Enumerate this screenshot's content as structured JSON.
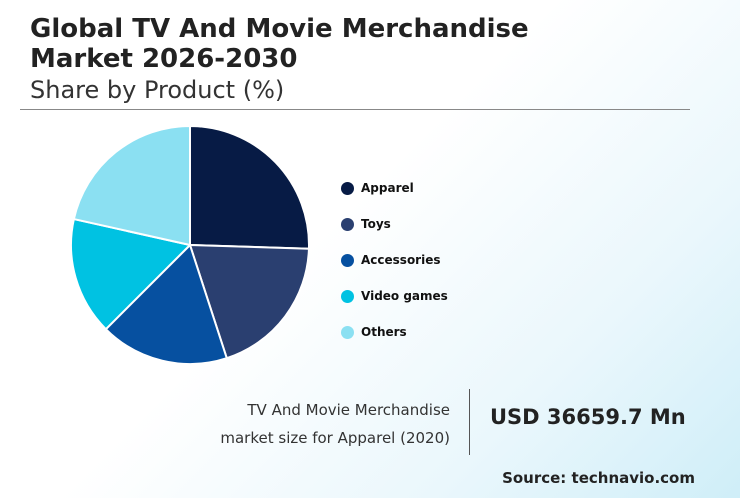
{
  "header": {
    "title_line1": "Global TV And Movie Merchandise",
    "title_line2": "Market 2026-2030",
    "subtitle": "Share by Product (%)"
  },
  "colors": {
    "apparel": "#071b45",
    "toys": "#2a3f70",
    "accessories": "#0650a0",
    "video_games": "#00c2e2",
    "others": "#8be0f2"
  },
  "chart_data": {
    "type": "pie",
    "title": "Share by Product (%)",
    "categories": [
      "Apparel",
      "Toys",
      "Accessories",
      "Video games",
      "Others"
    ],
    "values": [
      25.5,
      19.5,
      17.5,
      16.0,
      21.5
    ],
    "start_angle_deg": 0,
    "direction": "clockwise",
    "legend_position": "right"
  },
  "legend": {
    "items": [
      {
        "label": "Apparel",
        "color": "#071b45"
      },
      {
        "label": "Toys",
        "color": "#2a3f70"
      },
      {
        "label": "Accessories",
        "color": "#0650a0"
      },
      {
        "label": "Video games",
        "color": "#00c2e2"
      },
      {
        "label": "Others",
        "color": "#8be0f2"
      }
    ]
  },
  "market_size": {
    "description_line1": "TV And Movie Merchandise",
    "description_line2": "market size for Apparel (2020)",
    "value": "USD 36659.7 Mn"
  },
  "footer": {
    "source": "Source: technavio.com"
  }
}
